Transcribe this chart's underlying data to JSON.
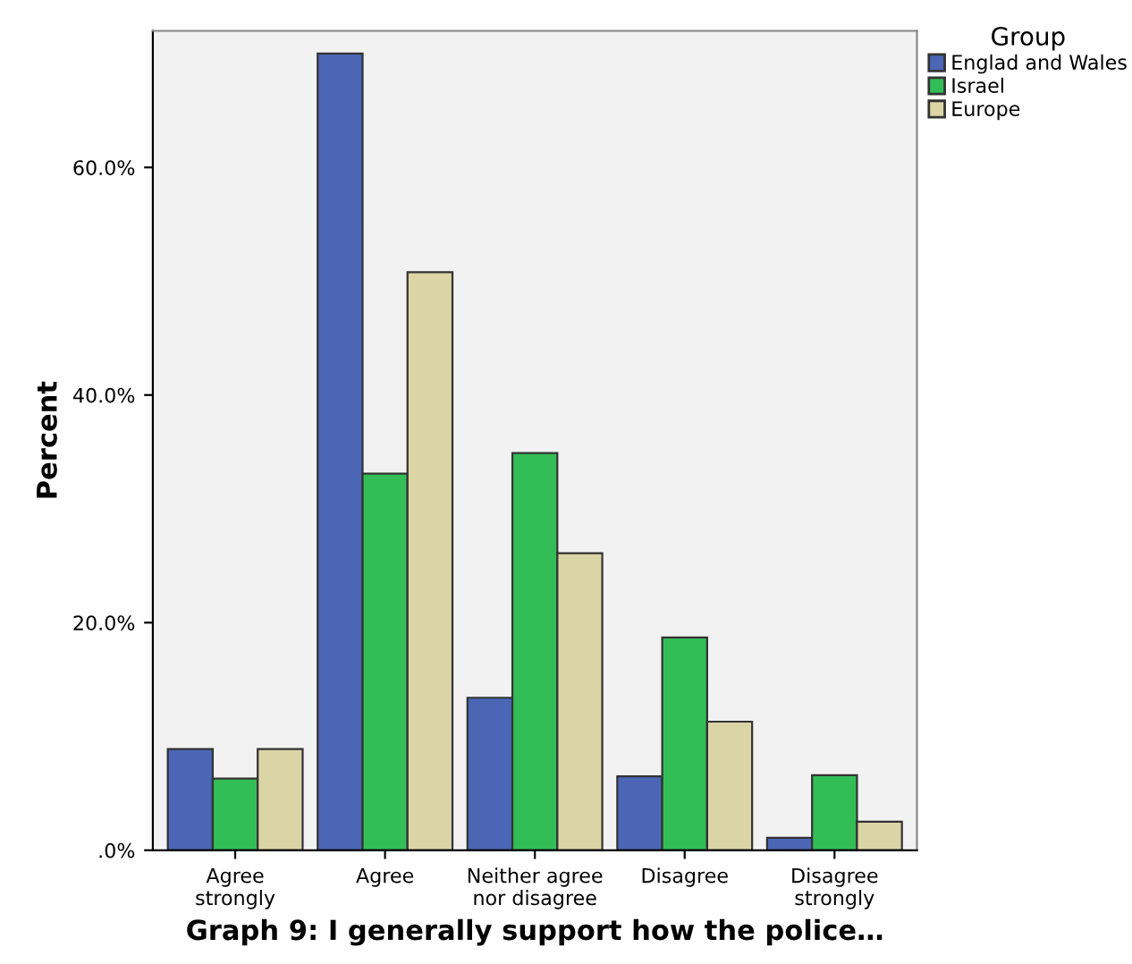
{
  "chart_data": {
    "type": "bar",
    "xlabel": "Graph 9: I generally support how the police…",
    "ylabel": "Percent",
    "legend_title": "Group",
    "categories": [
      "Agree\nstrongly",
      "Agree",
      "Neither agree\nnor disagree",
      "Disagree",
      "Disagree\nstrongly"
    ],
    "series": [
      {
        "name": "Englad and Wales",
        "color": "#4a66b5",
        "values": [
          8.9,
          70.0,
          13.4,
          6.5,
          1.1
        ]
      },
      {
        "name": "Israel",
        "color": "#33bd56",
        "values": [
          6.3,
          33.1,
          34.9,
          18.7,
          6.6
        ]
      },
      {
        "name": "Europe",
        "color": "#dbd5a6",
        "values": [
          8.9,
          50.8,
          26.1,
          11.3,
          2.5
        ]
      }
    ],
    "ylim": [
      0,
      72
    ],
    "yticks": [
      {
        "value": 0,
        "label": ".0%"
      },
      {
        "value": 20,
        "label": "20.0%"
      },
      {
        "value": 40,
        "label": "40.0%"
      },
      {
        "value": 60,
        "label": "60.0%"
      }
    ],
    "grid": false,
    "legend": "top right"
  }
}
